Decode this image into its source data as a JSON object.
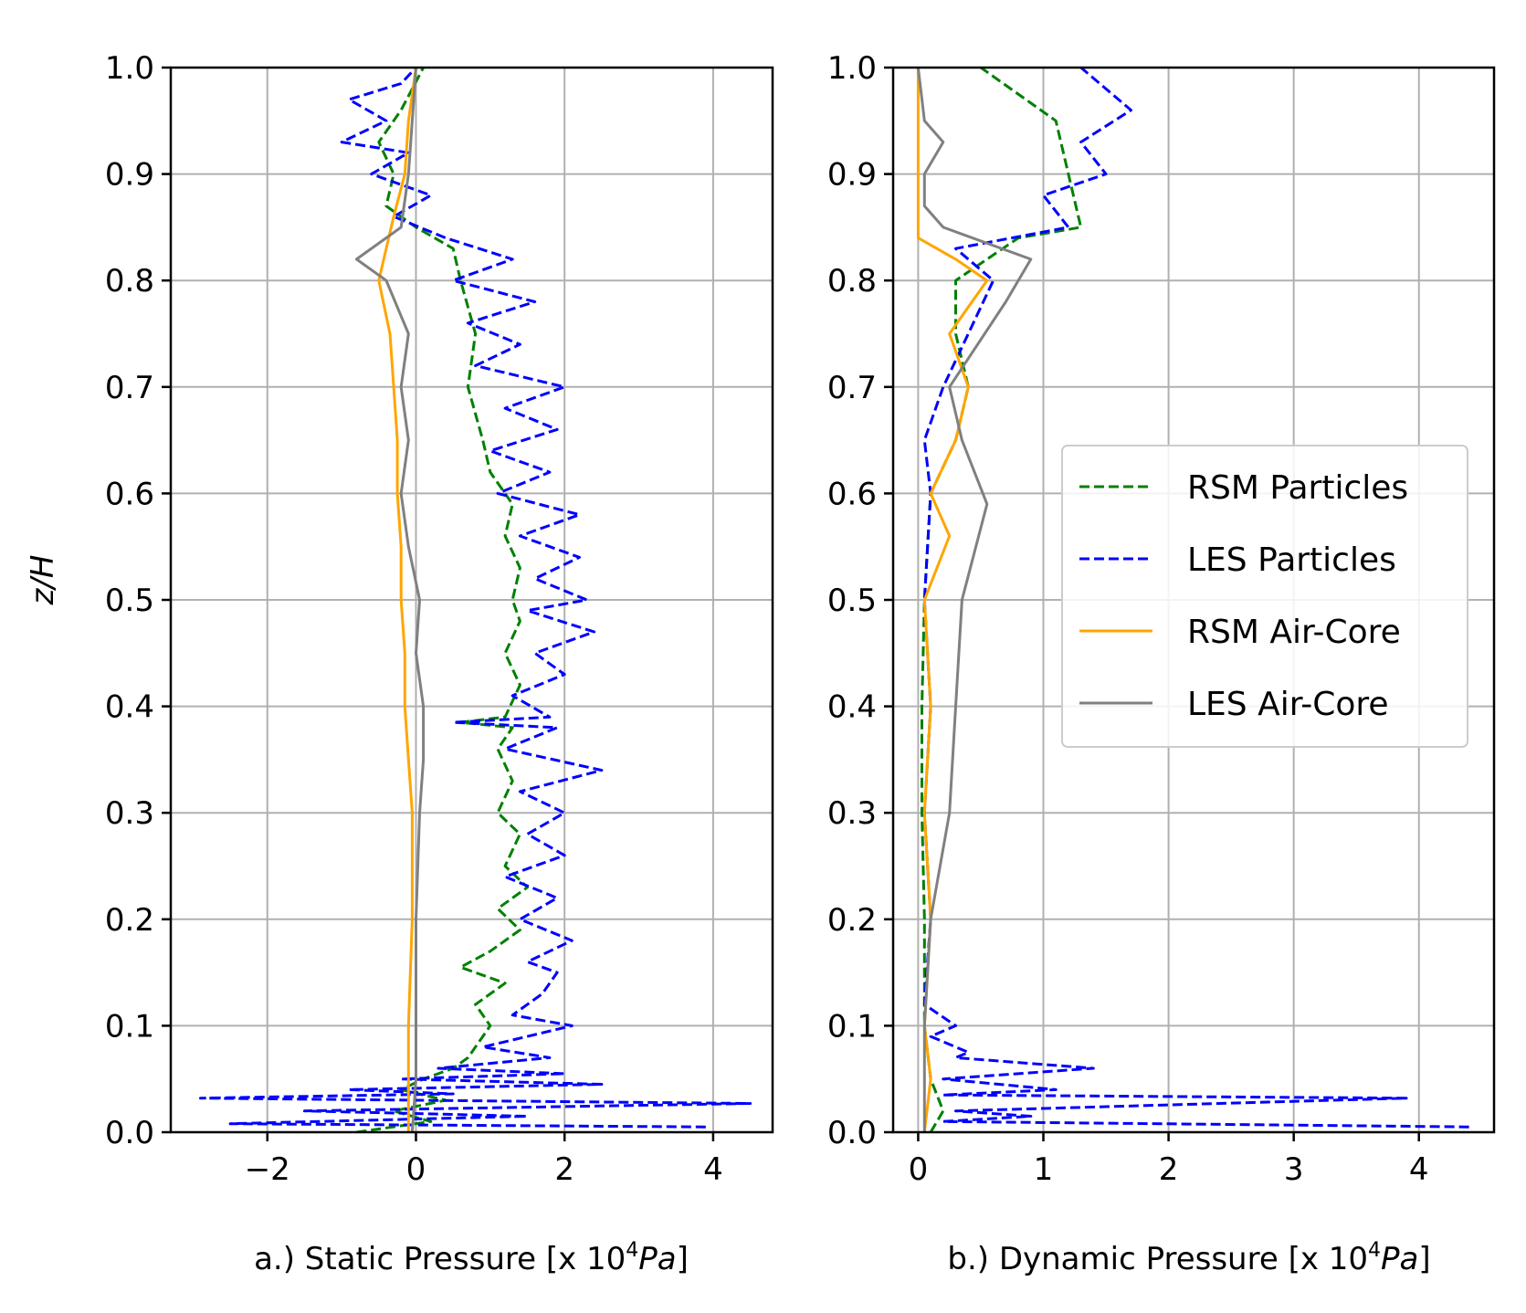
{
  "chart_data": [
    {
      "type": "line",
      "panel": "a",
      "xlabel_prefix": "a.) Static Pressure [x 10",
      "xlabel_sup": "4",
      "xlabel_unit": "Pa",
      "xlabel_suffix": "]",
      "ylabel": "z/H",
      "xlim": [
        -3.3,
        4.8
      ],
      "ylim": [
        0.0,
        1.0
      ],
      "xticks": [
        -2,
        0,
        2,
        4
      ],
      "xtick_labels": [
        "−2",
        "0",
        "2",
        "4"
      ],
      "yticks": [
        0.0,
        0.1,
        0.2,
        0.3,
        0.4,
        0.5,
        0.6,
        0.7,
        0.8,
        0.9,
        1.0
      ],
      "ytick_labels": [
        "0.0",
        "0.1",
        "0.2",
        "0.3",
        "0.4",
        "0.5",
        "0.6",
        "0.7",
        "0.8",
        "0.9",
        "1.0"
      ],
      "grid": true,
      "series": [
        {
          "name": "RSM Particles",
          "color": "#008000",
          "dash": true,
          "points": [
            [
              -0.8,
              0.0
            ],
            [
              0.2,
              0.01
            ],
            [
              -0.3,
              0.02
            ],
            [
              0.4,
              0.03
            ],
            [
              -0.2,
              0.04
            ],
            [
              0.1,
              0.05
            ],
            [
              0.5,
              0.06
            ],
            [
              0.7,
              0.07
            ],
            [
              0.9,
              0.09
            ],
            [
              1.0,
              0.1
            ],
            [
              0.8,
              0.12
            ],
            [
              1.2,
              0.14
            ],
            [
              0.6,
              0.155
            ],
            [
              1.0,
              0.17
            ],
            [
              1.4,
              0.19
            ],
            [
              1.1,
              0.21
            ],
            [
              1.5,
              0.23
            ],
            [
              1.2,
              0.25
            ],
            [
              1.4,
              0.28
            ],
            [
              1.1,
              0.3
            ],
            [
              1.3,
              0.33
            ],
            [
              1.1,
              0.36
            ],
            [
              1.3,
              0.38
            ],
            [
              0.6,
              0.385
            ],
            [
              1.2,
              0.39
            ],
            [
              1.4,
              0.42
            ],
            [
              1.2,
              0.45
            ],
            [
              1.4,
              0.48
            ],
            [
              1.3,
              0.5
            ],
            [
              1.4,
              0.53
            ],
            [
              1.2,
              0.56
            ],
            [
              1.3,
              0.59
            ],
            [
              1.0,
              0.62
            ],
            [
              0.9,
              0.65
            ],
            [
              0.7,
              0.7
            ],
            [
              0.8,
              0.75
            ],
            [
              0.6,
              0.8
            ],
            [
              0.5,
              0.83
            ],
            [
              0.0,
              0.85
            ],
            [
              -0.4,
              0.87
            ],
            [
              -0.3,
              0.9
            ],
            [
              -0.5,
              0.93
            ],
            [
              -0.2,
              0.96
            ],
            [
              0.1,
              1.0
            ]
          ]
        },
        {
          "name": "LES Particles",
          "color": "#0000ff",
          "dash": true,
          "points": [
            [
              3.9,
              0.005
            ],
            [
              -2.5,
              0.008
            ],
            [
              1.5,
              0.015
            ],
            [
              -1.5,
              0.02
            ],
            [
              4.5,
              0.027
            ],
            [
              -2.9,
              0.032
            ],
            [
              0.5,
              0.036
            ],
            [
              -0.9,
              0.04
            ],
            [
              2.5,
              0.045
            ],
            [
              -0.2,
              0.05
            ],
            [
              2.0,
              0.055
            ],
            [
              0.3,
              0.06
            ],
            [
              1.8,
              0.07
            ],
            [
              0.9,
              0.08
            ],
            [
              1.5,
              0.09
            ],
            [
              2.1,
              0.1
            ],
            [
              1.3,
              0.11
            ],
            [
              1.7,
              0.13
            ],
            [
              1.9,
              0.15
            ],
            [
              1.5,
              0.16
            ],
            [
              2.1,
              0.18
            ],
            [
              1.4,
              0.2
            ],
            [
              1.9,
              0.22
            ],
            [
              1.2,
              0.24
            ],
            [
              2.0,
              0.26
            ],
            [
              1.5,
              0.28
            ],
            [
              2.0,
              0.3
            ],
            [
              1.4,
              0.32
            ],
            [
              2.5,
              0.34
            ],
            [
              1.2,
              0.36
            ],
            [
              1.9,
              0.38
            ],
            [
              0.5,
              0.385
            ],
            [
              1.8,
              0.39
            ],
            [
              1.3,
              0.41
            ],
            [
              2.0,
              0.43
            ],
            [
              1.6,
              0.45
            ],
            [
              2.4,
              0.47
            ],
            [
              1.5,
              0.49
            ],
            [
              2.3,
              0.5
            ],
            [
              1.6,
              0.52
            ],
            [
              2.2,
              0.54
            ],
            [
              1.4,
              0.56
            ],
            [
              2.2,
              0.58
            ],
            [
              1.1,
              0.6
            ],
            [
              1.8,
              0.62
            ],
            [
              1.0,
              0.64
            ],
            [
              1.9,
              0.66
            ],
            [
              1.2,
              0.68
            ],
            [
              2.0,
              0.7
            ],
            [
              0.8,
              0.72
            ],
            [
              1.4,
              0.74
            ],
            [
              0.7,
              0.76
            ],
            [
              1.6,
              0.78
            ],
            [
              0.5,
              0.8
            ],
            [
              1.3,
              0.82
            ],
            [
              0.4,
              0.84
            ],
            [
              -0.3,
              0.86
            ],
            [
              0.2,
              0.88
            ],
            [
              -0.6,
              0.9
            ],
            [
              -0.1,
              0.92
            ],
            [
              -1.0,
              0.93
            ],
            [
              -0.4,
              0.95
            ],
            [
              -0.9,
              0.97
            ],
            [
              -0.2,
              0.985
            ],
            [
              0.0,
              1.0
            ]
          ]
        },
        {
          "name": "RSM Air-Core",
          "color": "#ffa500",
          "dash": false,
          "points": [
            [
              -0.1,
              0.0
            ],
            [
              -0.1,
              0.05
            ],
            [
              -0.1,
              0.1
            ],
            [
              -0.05,
              0.2
            ],
            [
              -0.05,
              0.3
            ],
            [
              -0.1,
              0.35
            ],
            [
              -0.15,
              0.4
            ],
            [
              -0.15,
              0.45
            ],
            [
              -0.2,
              0.5
            ],
            [
              -0.2,
              0.55
            ],
            [
              -0.25,
              0.6
            ],
            [
              -0.25,
              0.65
            ],
            [
              -0.3,
              0.7
            ],
            [
              -0.35,
              0.75
            ],
            [
              -0.5,
              0.8
            ],
            [
              -0.3,
              0.86
            ],
            [
              -0.15,
              0.9
            ],
            [
              -0.1,
              0.95
            ],
            [
              0.0,
              1.0
            ]
          ]
        },
        {
          "name": "LES Air-Core",
          "color": "#808080",
          "dash": false,
          "points": [
            [
              -0.05,
              0.0
            ],
            [
              0.0,
              0.05
            ],
            [
              0.0,
              0.1
            ],
            [
              0.0,
              0.2
            ],
            [
              0.05,
              0.3
            ],
            [
              0.1,
              0.35
            ],
            [
              0.1,
              0.4
            ],
            [
              0.0,
              0.45
            ],
            [
              0.05,
              0.5
            ],
            [
              -0.1,
              0.55
            ],
            [
              -0.2,
              0.6
            ],
            [
              -0.1,
              0.65
            ],
            [
              -0.2,
              0.7
            ],
            [
              -0.1,
              0.75
            ],
            [
              -0.4,
              0.8
            ],
            [
              -0.8,
              0.82
            ],
            [
              -0.2,
              0.85
            ],
            [
              -0.1,
              0.9
            ],
            [
              -0.05,
              0.95
            ],
            [
              0.0,
              1.0
            ]
          ]
        }
      ]
    },
    {
      "type": "line",
      "panel": "b",
      "xlabel_prefix": "b.) Dynamic Pressure [x 10",
      "xlabel_sup": "4",
      "xlabel_unit": "Pa",
      "xlabel_suffix": "]",
      "ylabel": "",
      "xlim": [
        -0.2,
        4.6
      ],
      "ylim": [
        0.0,
        1.0
      ],
      "xticks": [
        0,
        1,
        2,
        3,
        4
      ],
      "xtick_labels": [
        "0",
        "1",
        "2",
        "3",
        "4"
      ],
      "yticks": [
        0.0,
        0.1,
        0.2,
        0.3,
        0.4,
        0.5,
        0.6,
        0.7,
        0.8,
        0.9,
        1.0
      ],
      "ytick_labels": [
        "0.0",
        "0.1",
        "0.2",
        "0.3",
        "0.4",
        "0.5",
        "0.6",
        "0.7",
        "0.8",
        "0.9",
        "1.0"
      ],
      "grid": true,
      "legend": [
        "RSM Particles",
        "LES Particles",
        "RSM Air-Core",
        "LES Air-Core"
      ],
      "series": [
        {
          "name": "RSM Particles",
          "color": "#008000",
          "dash": true,
          "points": [
            [
              0.1,
              0.0
            ],
            [
              0.2,
              0.02
            ],
            [
              0.1,
              0.05
            ],
            [
              0.05,
              0.1
            ],
            [
              0.05,
              0.2
            ],
            [
              0.03,
              0.3
            ],
            [
              0.03,
              0.4
            ],
            [
              0.05,
              0.5
            ],
            [
              0.1,
              0.6
            ],
            [
              0.3,
              0.65
            ],
            [
              0.4,
              0.7
            ],
            [
              0.3,
              0.75
            ],
            [
              0.3,
              0.8
            ],
            [
              0.8,
              0.84
            ],
            [
              1.3,
              0.85
            ],
            [
              1.2,
              0.9
            ],
            [
              1.1,
              0.95
            ],
            [
              0.5,
              1.0
            ]
          ]
        },
        {
          "name": "LES Particles",
          "color": "#0000ff",
          "dash": true,
          "points": [
            [
              4.4,
              0.005
            ],
            [
              0.2,
              0.01
            ],
            [
              0.9,
              0.015
            ],
            [
              0.3,
              0.02
            ],
            [
              3.9,
              0.032
            ],
            [
              0.2,
              0.035
            ],
            [
              1.1,
              0.04
            ],
            [
              0.2,
              0.05
            ],
            [
              1.4,
              0.06
            ],
            [
              0.3,
              0.07
            ],
            [
              0.4,
              0.075
            ],
            [
              0.1,
              0.09
            ],
            [
              0.3,
              0.1
            ],
            [
              0.05,
              0.12
            ],
            [
              0.1,
              0.2
            ],
            [
              0.05,
              0.3
            ],
            [
              0.1,
              0.4
            ],
            [
              0.05,
              0.5
            ],
            [
              0.1,
              0.6
            ],
            [
              0.05,
              0.65
            ],
            [
              0.2,
              0.7
            ],
            [
              0.4,
              0.75
            ],
            [
              0.6,
              0.8
            ],
            [
              0.3,
              0.83
            ],
            [
              1.2,
              0.85
            ],
            [
              1.0,
              0.88
            ],
            [
              1.5,
              0.9
            ],
            [
              1.3,
              0.93
            ],
            [
              1.7,
              0.96
            ],
            [
              1.3,
              1.0
            ]
          ]
        },
        {
          "name": "RSM Air-Core",
          "color": "#ffa500",
          "dash": false,
          "points": [
            [
              0.05,
              0.0
            ],
            [
              0.1,
              0.05
            ],
            [
              0.05,
              0.1
            ],
            [
              0.1,
              0.2
            ],
            [
              0.05,
              0.3
            ],
            [
              0.1,
              0.4
            ],
            [
              0.05,
              0.5
            ],
            [
              0.25,
              0.56
            ],
            [
              0.1,
              0.6
            ],
            [
              0.3,
              0.65
            ],
            [
              0.4,
              0.7
            ],
            [
              0.25,
              0.75
            ],
            [
              0.55,
              0.8
            ],
            [
              0.3,
              0.82
            ],
            [
              0.0,
              0.84
            ],
            [
              0.0,
              0.9
            ],
            [
              0.0,
              1.0
            ]
          ]
        },
        {
          "name": "LES Air-Core",
          "color": "#808080",
          "dash": false,
          "points": [
            [
              0.05,
              0.0
            ],
            [
              0.05,
              0.1
            ],
            [
              0.1,
              0.2
            ],
            [
              0.25,
              0.3
            ],
            [
              0.3,
              0.4
            ],
            [
              0.35,
              0.5
            ],
            [
              0.55,
              0.59
            ],
            [
              0.35,
              0.65
            ],
            [
              0.25,
              0.7
            ],
            [
              0.7,
              0.78
            ],
            [
              0.9,
              0.82
            ],
            [
              0.2,
              0.85
            ],
            [
              0.05,
              0.87
            ],
            [
              0.05,
              0.9
            ],
            [
              0.2,
              0.93
            ],
            [
              0.05,
              0.95
            ],
            [
              0.0,
              1.0
            ]
          ]
        }
      ]
    }
  ]
}
